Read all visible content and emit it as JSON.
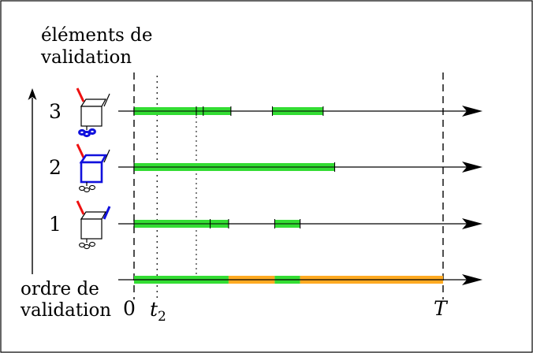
{
  "labels": {
    "elements_line1": "éléments de",
    "elements_line2": "validation",
    "order_line1": "ordre de",
    "order_line2": "validation",
    "tick_zero": "0",
    "tick_t2_main": "t",
    "tick_t2_sub": "2",
    "tick_T": "T"
  },
  "rows": [
    {
      "id": "3",
      "label": "3",
      "icon": "server-box-icon",
      "icon_state": {
        "left_antenna": "red",
        "right_antenna": "black",
        "box": "black",
        "cable": "blue"
      },
      "intervals": [
        [
          0,
          13.5,
          15.0,
          21.0
        ],
        [
          30.0,
          41.0
        ]
      ]
    },
    {
      "id": "2",
      "label": "2",
      "icon": "server-box-icon",
      "icon_state": {
        "left_antenna": "red",
        "right_antenna": "black",
        "box": "blue",
        "cable": "black"
      },
      "intervals": [
        [
          0,
          43.5
        ]
      ]
    },
    {
      "id": "1",
      "label": "1",
      "icon": "server-box-icon",
      "icon_state": {
        "left_antenna": "red",
        "right_antenna": "blue",
        "box": "black",
        "cable": "black"
      },
      "intervals": [
        [
          0,
          16.5,
          20.5
        ],
        [
          30.5,
          36.0
        ]
      ]
    }
  ],
  "summary": {
    "segments": [
      {
        "from": 0,
        "to": 20.5,
        "status": "green"
      },
      {
        "from": 20.5,
        "to": 30.5,
        "status": "orange"
      },
      {
        "from": 30.5,
        "to": 36.0,
        "status": "green"
      },
      {
        "from": 36.0,
        "to": 67.0,
        "status": "orange"
      }
    ]
  },
  "time": {
    "zero": 0,
    "t2": 5.0,
    "T": 67.0,
    "aux": 13.5,
    "max": 76
  },
  "colors": {
    "green": "#33dd33",
    "orange": "#ffaa22",
    "red": "#ee1111",
    "blue": "#1111dd",
    "ink": "#000000"
  }
}
